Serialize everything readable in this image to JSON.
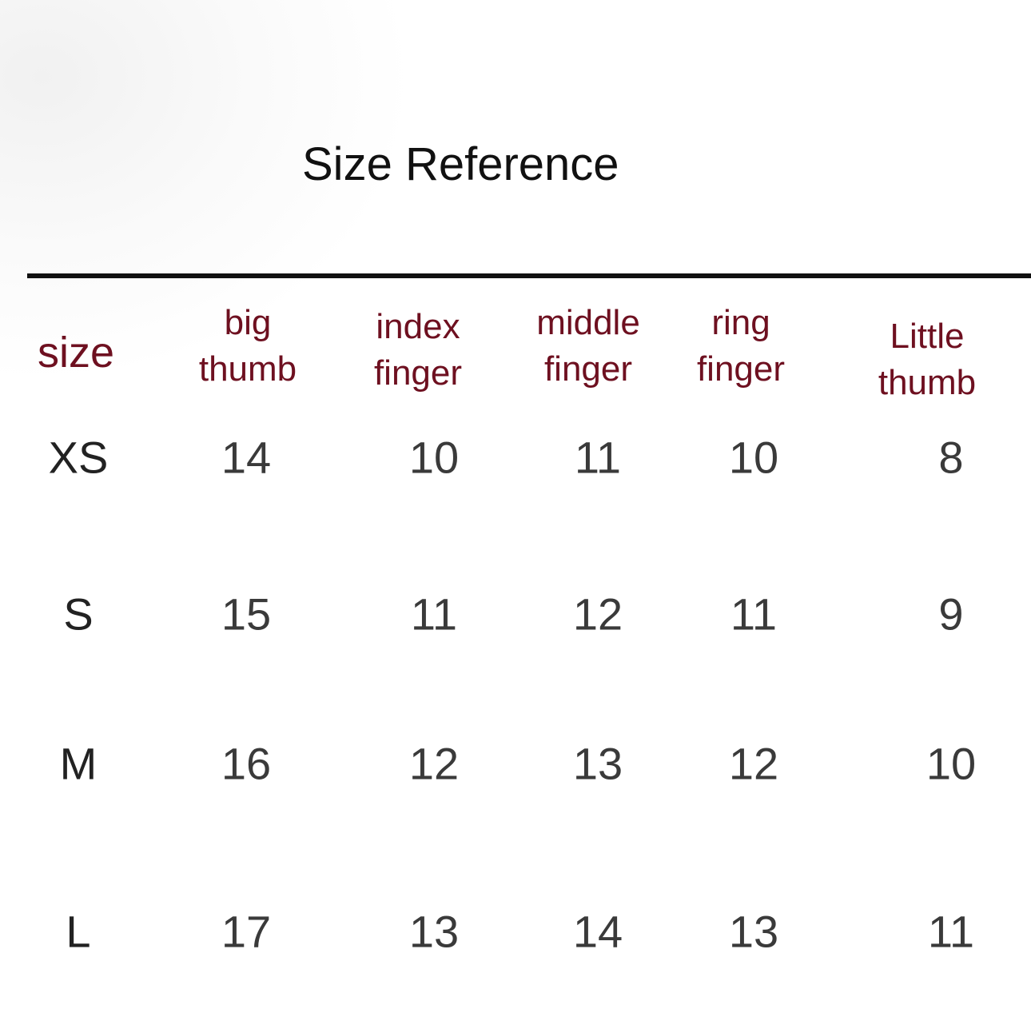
{
  "title": "Size Reference",
  "colors": {
    "header": "#6e1020",
    "text": "#3a3a3a",
    "rule": "#111111"
  },
  "table": {
    "headers": [
      {
        "line1": "size",
        "line2": ""
      },
      {
        "line1": "big",
        "line2": "thumb"
      },
      {
        "line1": "index",
        "line2": "finger"
      },
      {
        "line1": "middle",
        "line2": "finger"
      },
      {
        "line1": "ring",
        "line2": "finger"
      },
      {
        "line1": "Little",
        "line2": "thumb"
      }
    ],
    "rows": [
      {
        "size": "XS",
        "values": [
          "14",
          "10",
          "11",
          "10",
          "8"
        ]
      },
      {
        "size": "S",
        "values": [
          "15",
          "11",
          "12",
          "11",
          "9"
        ]
      },
      {
        "size": "M",
        "values": [
          "16",
          "12",
          "13",
          "12",
          "10"
        ]
      },
      {
        "size": "L",
        "values": [
          "17",
          "13",
          "14",
          "13",
          "11"
        ]
      }
    ]
  }
}
